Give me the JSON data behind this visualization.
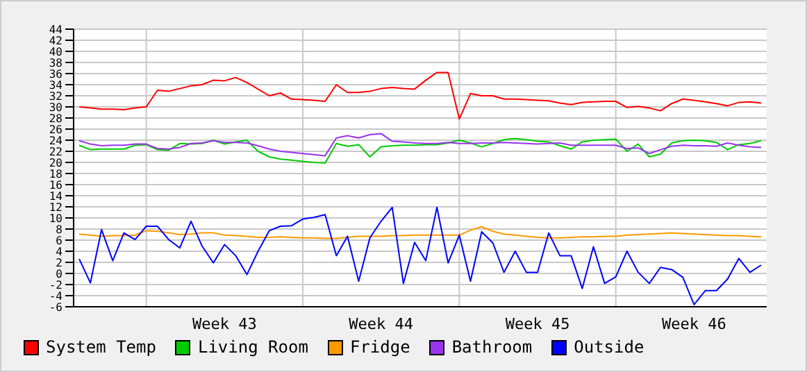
{
  "chart_data": {
    "type": "line",
    "categories": [
      null,
      null,
      null,
      null,
      null,
      null,
      null,
      null,
      null,
      null,
      null,
      null,
      null,
      "Week 43",
      null,
      null,
      null,
      null,
      null,
      null,
      null,
      null,
      null,
      null,
      null,
      null,
      null,
      "Week 44",
      null,
      null,
      null,
      null,
      null,
      null,
      null,
      null,
      null,
      null,
      null,
      null,
      null,
      "Week 45",
      null,
      null,
      null,
      null,
      null,
      null,
      null,
      null,
      null,
      null,
      null,
      null,
      null,
      "Week 46",
      null,
      null,
      null,
      null,
      null,
      null
    ],
    "ylim": [
      -6,
      44
    ],
    "yticks": [
      -6,
      -4,
      -2,
      0,
      2,
      4,
      6,
      8,
      10,
      12,
      14,
      16,
      18,
      20,
      22,
      24,
      26,
      28,
      30,
      32,
      34,
      36,
      38,
      40,
      42,
      44
    ],
    "grid": true,
    "legend": "bottom",
    "marker": "none",
    "line_style": "solid",
    "series": [
      {
        "name": "System Temp",
        "color": "#ff0000",
        "values": [
          30.0,
          29.8,
          29.6,
          29.6,
          29.5,
          29.8,
          30.0,
          33.0,
          32.8,
          33.3,
          33.8,
          34.0,
          34.8,
          34.7,
          35.3,
          34.4,
          33.2,
          32.0,
          32.5,
          31.4,
          31.3,
          31.2,
          31.0,
          34.0,
          32.6,
          32.6,
          32.8,
          33.3,
          33.5,
          33.3,
          33.2,
          34.8,
          36.2,
          36.2,
          27.8,
          32.4,
          32.0,
          32.0,
          31.4,
          31.4,
          31.3,
          31.2,
          31.1,
          30.7,
          30.4,
          30.8,
          30.9,
          31.0,
          31.0,
          29.9,
          30.1,
          29.8,
          29.3,
          30.6,
          31.4,
          31.2,
          30.9,
          30.6,
          30.2,
          30.8,
          30.9,
          30.7
        ]
      },
      {
        "name": "Living Room",
        "color": "#00cc00",
        "values": [
          23.1,
          22.3,
          22.4,
          22.4,
          22.4,
          23.1,
          23.2,
          22.3,
          22.2,
          23.4,
          23.3,
          23.4,
          24.0,
          23.3,
          23.7,
          24.0,
          22.0,
          21.0,
          20.6,
          20.4,
          20.2,
          20.0,
          19.9,
          23.4,
          22.9,
          23.2,
          21.0,
          22.8,
          23.0,
          23.1,
          23.1,
          23.2,
          23.2,
          23.5,
          24.0,
          23.5,
          22.8,
          23.4,
          24.1,
          24.3,
          24.1,
          23.8,
          23.7,
          23.0,
          22.4,
          23.7,
          24.0,
          24.1,
          24.2,
          22.0,
          23.3,
          21.0,
          21.5,
          23.5,
          23.9,
          24.0,
          23.9,
          23.6,
          22.3,
          23.2,
          23.4,
          23.9
        ]
      },
      {
        "name": "Fridge",
        "color": "#ff9900",
        "values": [
          7.1,
          6.9,
          6.7,
          6.8,
          6.8,
          6.9,
          7.7,
          7.6,
          7.3,
          7.0,
          7.1,
          7.3,
          7.3,
          6.9,
          6.8,
          6.7,
          6.5,
          6.5,
          6.6,
          6.5,
          6.4,
          6.4,
          6.3,
          6.3,
          6.5,
          6.7,
          6.7,
          6.7,
          6.8,
          6.8,
          6.9,
          6.9,
          6.9,
          6.9,
          6.9,
          7.8,
          8.4,
          7.6,
          7.1,
          6.9,
          6.7,
          6.5,
          6.4,
          6.4,
          6.5,
          6.6,
          6.6,
          6.7,
          6.7,
          6.9,
          7.0,
          7.1,
          7.2,
          7.3,
          7.2,
          7.1,
          7.0,
          6.9,
          6.8,
          6.8,
          6.7,
          6.6
        ]
      },
      {
        "name": "Bathroom",
        "color": "#9933ee",
        "values": [
          23.9,
          23.3,
          23.0,
          23.1,
          23.1,
          23.3,
          23.3,
          22.5,
          22.4,
          22.7,
          23.4,
          23.5,
          23.9,
          23.6,
          23.6,
          23.5,
          23.0,
          22.4,
          22.0,
          21.8,
          21.6,
          21.4,
          21.2,
          24.4,
          24.8,
          24.4,
          25.0,
          25.2,
          23.8,
          23.7,
          23.5,
          23.4,
          23.4,
          23.6,
          23.4,
          23.4,
          23.5,
          23.5,
          23.6,
          23.5,
          23.4,
          23.3,
          23.4,
          23.5,
          23.1,
          23.1,
          23.1,
          23.1,
          23.1,
          22.5,
          22.6,
          21.6,
          22.3,
          22.9,
          23.1,
          23.0,
          23.0,
          22.9,
          23.5,
          23.1,
          22.8,
          22.7
        ]
      },
      {
        "name": "Outside",
        "color": "#0000ff",
        "values": [
          2.6,
          -1.7,
          7.9,
          2.3,
          7.3,
          6.1,
          8.5,
          8.5,
          6.1,
          4.6,
          9.4,
          4.9,
          1.9,
          5.2,
          3.2,
          -0.2,
          4.0,
          7.7,
          8.5,
          8.6,
          9.8,
          10.1,
          10.6,
          3.2,
          6.7,
          -1.4,
          6.4,
          9.4,
          11.9,
          -1.8,
          5.6,
          2.3,
          11.9,
          1.9,
          6.9,
          -1.4,
          7.5,
          5.5,
          0.2,
          4.0,
          0.2,
          0.2,
          7.3,
          3.2,
          3.2,
          -2.7,
          4.8,
          -1.8,
          -0.6,
          4.0,
          0.2,
          -1.8,
          1.1,
          0.7,
          -0.7,
          -5.6,
          -3.1,
          -3.1,
          -1.0,
          2.7,
          0.2,
          1.5
        ]
      }
    ]
  }
}
